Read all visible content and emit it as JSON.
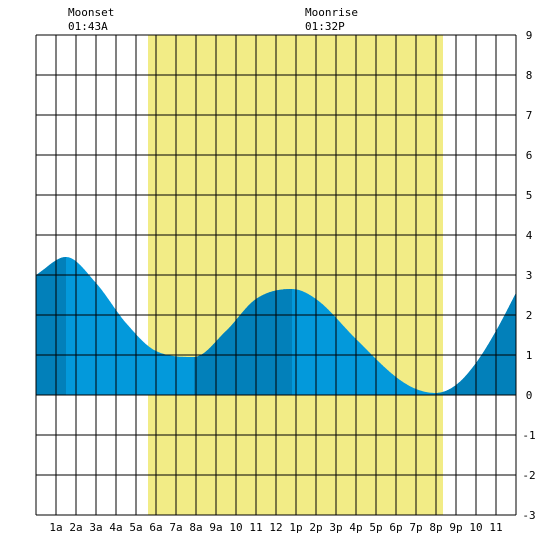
{
  "chart_data": {
    "type": "area",
    "title": "",
    "xlabel": "",
    "ylabel": "",
    "x_tick_labels": [
      "1a",
      "2a",
      "3a",
      "4a",
      "5a",
      "6a",
      "7a",
      "8a",
      "9a",
      "10",
      "11",
      "12",
      "1p",
      "2p",
      "3p",
      "4p",
      "5p",
      "6p",
      "7p",
      "8p",
      "9p",
      "10",
      "11"
    ],
    "xlim_hours": [
      0,
      24
    ],
    "ylim": [
      -3,
      9
    ],
    "y_tick_labels": [
      "-3",
      "-2",
      "-1",
      "0",
      "1",
      "2",
      "3",
      "4",
      "5",
      "6",
      "7",
      "8",
      "9"
    ],
    "grid": true,
    "daylight_hours": [
      5.6,
      20.35
    ],
    "series": [
      {
        "x": [
          0,
          1.5,
          3,
          4.5,
          6,
          7.9,
          9.5,
          11,
          12.8,
          14,
          16,
          18,
          19,
          20.0,
          21,
          22,
          23,
          24
        ],
        "y": [
          3.0,
          3.45,
          2.8,
          1.8,
          1.1,
          0.95,
          1.6,
          2.4,
          2.65,
          2.4,
          1.4,
          0.45,
          0.15,
          0.05,
          0.25,
          0.8,
          1.6,
          2.55
        ]
      }
    ],
    "dark_segments_hours": [
      [
        0,
        1.5
      ],
      [
        7.9,
        12.8
      ],
      [
        20.0,
        24
      ]
    ],
    "colors": {
      "daylight": "#f2ec86",
      "tide_light": "#0399db",
      "tide_dark": "#0280ba",
      "grid": "#000000"
    }
  },
  "moon_labels": [
    {
      "title": "Moonset",
      "time": "01:43A"
    },
    {
      "title": "Moonrise",
      "time": "01:32P"
    }
  ]
}
